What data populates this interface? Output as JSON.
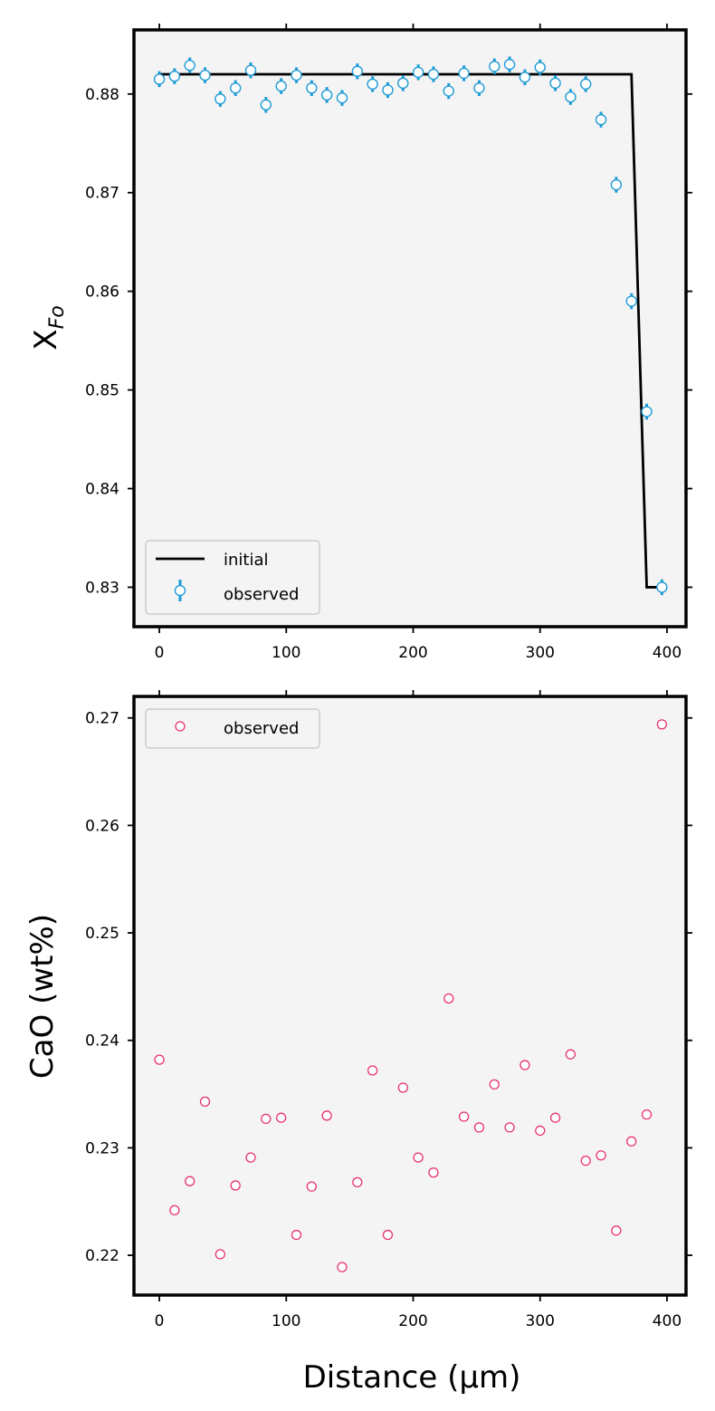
{
  "chart_data": [
    {
      "type": "line+scatter",
      "ylabel_main": "X",
      "ylabel_sub": "Fo",
      "xlabel": "",
      "xlim": [
        -20,
        415
      ],
      "ylim": [
        0.826,
        0.8865
      ],
      "xticks": [
        0,
        100,
        200,
        300,
        400
      ],
      "yticks": [
        0.83,
        0.84,
        0.85,
        0.86,
        0.87,
        0.88
      ],
      "ytick_labels": [
        "0.83",
        "0.84",
        "0.85",
        "0.86",
        "0.87",
        "0.88"
      ],
      "xtick_labels": [
        "0",
        "100",
        "200",
        "300",
        "400"
      ],
      "legend_position": "lower-left",
      "series": [
        {
          "name": "initial",
          "kind": "line",
          "color": "#000000",
          "x": [
            0,
            372,
            384,
            396
          ],
          "y": [
            0.882,
            0.882,
            0.83,
            0.83
          ]
        },
        {
          "name": "observed",
          "kind": "errorbar",
          "color": "#1f9bd6",
          "yerr": 0.0008,
          "x": [
            0,
            12,
            24,
            36,
            48,
            60,
            72,
            84,
            96,
            108,
            120,
            132,
            144,
            156,
            168,
            180,
            192,
            204,
            216,
            228,
            240,
            252,
            264,
            276,
            288,
            300,
            312,
            324,
            336,
            348,
            360,
            372,
            384,
            396
          ],
          "y": [
            0.8815,
            0.8818,
            0.8829,
            0.8819,
            0.8795,
            0.8806,
            0.8824,
            0.8789,
            0.8808,
            0.8819,
            0.8806,
            0.8799,
            0.8796,
            0.8823,
            0.881,
            0.8804,
            0.8811,
            0.8822,
            0.882,
            0.8803,
            0.8821,
            0.8806,
            0.8828,
            0.883,
            0.8817,
            0.8827,
            0.8811,
            0.8797,
            0.881,
            0.8774,
            0.8708,
            0.859,
            0.8478,
            0.83
          ]
        }
      ]
    },
    {
      "type": "scatter",
      "ylabel": "CaO (wt%)",
      "xlabel": "Distance (μm)",
      "xlim": [
        -20,
        415
      ],
      "ylim": [
        0.2163,
        0.272
      ],
      "xticks": [
        0,
        100,
        200,
        300,
        400
      ],
      "yticks": [
        0.22,
        0.23,
        0.24,
        0.25,
        0.26,
        0.27
      ],
      "ytick_labels": [
        "0.22",
        "0.23",
        "0.24",
        "0.25",
        "0.26",
        "0.27"
      ],
      "xtick_labels": [
        "0",
        "100",
        "200",
        "300",
        "400"
      ],
      "legend_position": "top-left",
      "series": [
        {
          "name": "observed",
          "kind": "scatter",
          "color": "#e8336b",
          "x": [
            0,
            12,
            24,
            36,
            48,
            60,
            72,
            84,
            96,
            108,
            120,
            132,
            144,
            156,
            168,
            180,
            192,
            204,
            216,
            228,
            240,
            252,
            264,
            276,
            288,
            300,
            312,
            324,
            336,
            348,
            360,
            372,
            384,
            396
          ],
          "y": [
            0.2382,
            0.2242,
            0.2269,
            0.2343,
            0.2201,
            0.2265,
            0.2291,
            0.2327,
            0.2328,
            0.2219,
            0.2264,
            0.233,
            0.2189,
            0.2268,
            0.2372,
            0.2219,
            0.2356,
            0.2291,
            0.2277,
            0.2439,
            0.2329,
            0.2319,
            0.2359,
            0.2319,
            0.2377,
            0.2316,
            0.2328,
            0.2387,
            0.2288,
            0.2293,
            0.2223,
            0.2306,
            0.2331,
            0.2694
          ]
        }
      ]
    }
  ]
}
